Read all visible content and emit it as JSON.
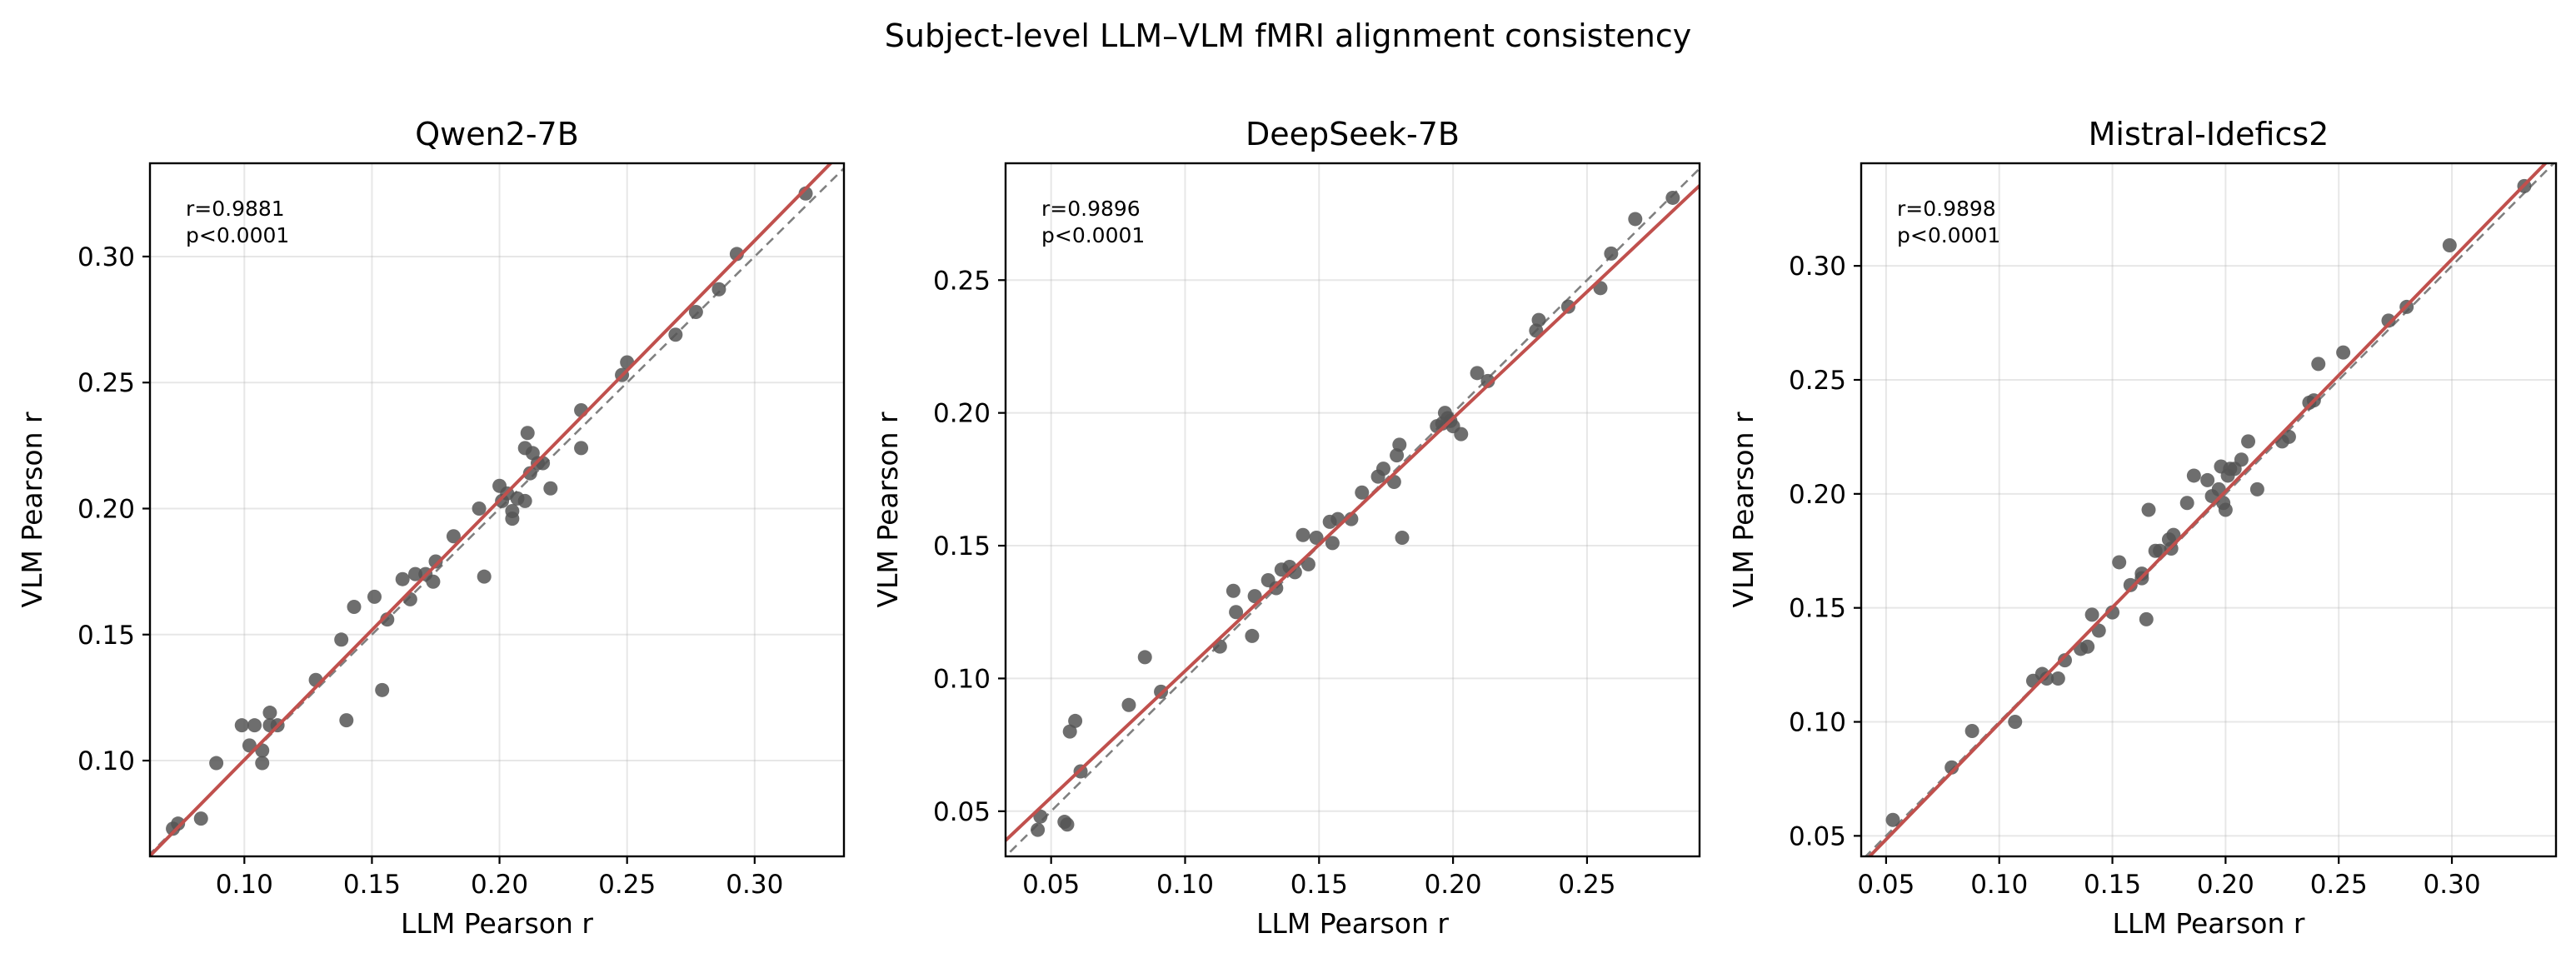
{
  "title": "Subject-level LLM–VLM fMRI alignment consistency",
  "colors": {
    "point": "#555555",
    "fit": "#c0504d",
    "identity": "#808080",
    "grid": "#b0b0b0"
  },
  "chart_data": [
    {
      "type": "scatter",
      "title": "Qwen2-7B",
      "xlabel": "LLM Pearson r",
      "ylabel": "VLM Pearson r",
      "stats": [
        "r=0.9881",
        "p<0.0001"
      ],
      "xlim": [
        0.063,
        0.335
      ],
      "ylim": [
        0.062,
        0.337
      ],
      "xticks": [
        0.1,
        0.15,
        0.2,
        0.25,
        0.3
      ],
      "yticks": [
        0.1,
        0.15,
        0.2,
        0.25,
        0.3
      ],
      "tick_labels_x": [
        "0.10",
        "0.15",
        "0.20",
        "0.25",
        "0.30"
      ],
      "tick_labels_y": [
        "0.10",
        "0.15",
        "0.20",
        "0.25",
        "0.30"
      ],
      "fit": {
        "slope": 1.03,
        "intercept": -0.0027
      },
      "identity_line": true,
      "grid": true,
      "points": [
        [
          0.072,
          0.073
        ],
        [
          0.074,
          0.075
        ],
        [
          0.083,
          0.077
        ],
        [
          0.089,
          0.099
        ],
        [
          0.099,
          0.114
        ],
        [
          0.102,
          0.106
        ],
        [
          0.104,
          0.114
        ],
        [
          0.107,
          0.104
        ],
        [
          0.107,
          0.099
        ],
        [
          0.11,
          0.119
        ],
        [
          0.11,
          0.114
        ],
        [
          0.113,
          0.114
        ],
        [
          0.128,
          0.132
        ],
        [
          0.138,
          0.148
        ],
        [
          0.14,
          0.116
        ],
        [
          0.143,
          0.161
        ],
        [
          0.151,
          0.165
        ],
        [
          0.154,
          0.128
        ],
        [
          0.156,
          0.156
        ],
        [
          0.162,
          0.172
        ],
        [
          0.165,
          0.164
        ],
        [
          0.167,
          0.174
        ],
        [
          0.171,
          0.174
        ],
        [
          0.174,
          0.171
        ],
        [
          0.175,
          0.179
        ],
        [
          0.182,
          0.189
        ],
        [
          0.192,
          0.2
        ],
        [
          0.194,
          0.173
        ],
        [
          0.2,
          0.209
        ],
        [
          0.201,
          0.203
        ],
        [
          0.203,
          0.206
        ],
        [
          0.205,
          0.199
        ],
        [
          0.205,
          0.196
        ],
        [
          0.207,
          0.204
        ],
        [
          0.21,
          0.203
        ],
        [
          0.21,
          0.224
        ],
        [
          0.211,
          0.23
        ],
        [
          0.212,
          0.214
        ],
        [
          0.213,
          0.222
        ],
        [
          0.215,
          0.218
        ],
        [
          0.217,
          0.218
        ],
        [
          0.22,
          0.208
        ],
        [
          0.232,
          0.224
        ],
        [
          0.232,
          0.239
        ],
        [
          0.248,
          0.253
        ],
        [
          0.25,
          0.258
        ],
        [
          0.269,
          0.269
        ],
        [
          0.277,
          0.278
        ],
        [
          0.286,
          0.287
        ],
        [
          0.293,
          0.301
        ],
        [
          0.32,
          0.325
        ]
      ]
    },
    {
      "type": "scatter",
      "title": "DeepSeek-7B",
      "xlabel": "LLM Pearson r",
      "ylabel": "VLM Pearson r",
      "stats": [
        "r=0.9896",
        "p<0.0001"
      ],
      "xlim": [
        0.033,
        0.292
      ],
      "ylim": [
        0.033,
        0.294
      ],
      "xticks": [
        0.05,
        0.1,
        0.15,
        0.2,
        0.25
      ],
      "yticks": [
        0.05,
        0.1,
        0.15,
        0.2,
        0.25
      ],
      "tick_labels_x": [
        "0.05",
        "0.10",
        "0.15",
        "0.20",
        "0.25"
      ],
      "tick_labels_y": [
        "0.05",
        "0.10",
        "0.15",
        "0.20",
        "0.25"
      ],
      "fit": {
        "slope": 0.952,
        "intercept": 0.0076
      },
      "identity_line": true,
      "grid": true,
      "points": [
        [
          0.045,
          0.043
        ],
        [
          0.046,
          0.048
        ],
        [
          0.055,
          0.046
        ],
        [
          0.056,
          0.045
        ],
        [
          0.057,
          0.08
        ],
        [
          0.059,
          0.084
        ],
        [
          0.061,
          0.065
        ],
        [
          0.079,
          0.09
        ],
        [
          0.085,
          0.108
        ],
        [
          0.091,
          0.095
        ],
        [
          0.113,
          0.112
        ],
        [
          0.118,
          0.133
        ],
        [
          0.119,
          0.125
        ],
        [
          0.125,
          0.116
        ],
        [
          0.126,
          0.131
        ],
        [
          0.131,
          0.137
        ],
        [
          0.134,
          0.134
        ],
        [
          0.136,
          0.141
        ],
        [
          0.139,
          0.142
        ],
        [
          0.141,
          0.14
        ],
        [
          0.144,
          0.154
        ],
        [
          0.146,
          0.143
        ],
        [
          0.149,
          0.153
        ],
        [
          0.154,
          0.159
        ],
        [
          0.155,
          0.151
        ],
        [
          0.157,
          0.16
        ],
        [
          0.162,
          0.16
        ],
        [
          0.166,
          0.17
        ],
        [
          0.172,
          0.176
        ],
        [
          0.174,
          0.179
        ],
        [
          0.178,
          0.174
        ],
        [
          0.179,
          0.184
        ],
        [
          0.18,
          0.188
        ],
        [
          0.181,
          0.153
        ],
        [
          0.194,
          0.195
        ],
        [
          0.196,
          0.196
        ],
        [
          0.197,
          0.2
        ],
        [
          0.198,
          0.198
        ],
        [
          0.199,
          0.197
        ],
        [
          0.2,
          0.195
        ],
        [
          0.203,
          0.192
        ],
        [
          0.209,
          0.215
        ],
        [
          0.213,
          0.212
        ],
        [
          0.231,
          0.231
        ],
        [
          0.232,
          0.235
        ],
        [
          0.243,
          0.24
        ],
        [
          0.255,
          0.247
        ],
        [
          0.259,
          0.26
        ],
        [
          0.268,
          0.273
        ],
        [
          0.282,
          0.281
        ]
      ]
    },
    {
      "type": "scatter",
      "title": "Mistral-Idefics2",
      "xlabel": "LLM Pearson r",
      "ylabel": "VLM Pearson r",
      "stats": [
        "r=0.9898",
        "p<0.0001"
      ],
      "xlim": [
        0.039,
        0.346
      ],
      "ylim": [
        0.041,
        0.345
      ],
      "xticks": [
        0.05,
        0.1,
        0.15,
        0.2,
        0.25,
        0.3
      ],
      "yticks": [
        0.05,
        0.1,
        0.15,
        0.2,
        0.25,
        0.3
      ],
      "tick_labels_x": [
        "0.05",
        "0.10",
        "0.15",
        "0.20",
        "0.25",
        "0.30"
      ],
      "tick_labels_y": [
        "0.05",
        "0.10",
        "0.15",
        "0.20",
        "0.25",
        "0.30"
      ],
      "fit": {
        "slope": 1.018,
        "intercept": -0.0025
      },
      "identity_line": true,
      "grid": true,
      "points": [
        [
          0.053,
          0.057
        ],
        [
          0.079,
          0.08
        ],
        [
          0.088,
          0.096
        ],
        [
          0.107,
          0.1
        ],
        [
          0.115,
          0.118
        ],
        [
          0.119,
          0.121
        ],
        [
          0.121,
          0.119
        ],
        [
          0.126,
          0.119
        ],
        [
          0.129,
          0.127
        ],
        [
          0.136,
          0.132
        ],
        [
          0.139,
          0.133
        ],
        [
          0.141,
          0.147
        ],
        [
          0.144,
          0.14
        ],
        [
          0.15,
          0.148
        ],
        [
          0.153,
          0.17
        ],
        [
          0.158,
          0.16
        ],
        [
          0.163,
          0.163
        ],
        [
          0.163,
          0.165
        ],
        [
          0.165,
          0.145
        ],
        [
          0.166,
          0.193
        ],
        [
          0.169,
          0.175
        ],
        [
          0.171,
          0.175
        ],
        [
          0.175,
          0.18
        ],
        [
          0.176,
          0.176
        ],
        [
          0.177,
          0.182
        ],
        [
          0.183,
          0.196
        ],
        [
          0.186,
          0.208
        ],
        [
          0.192,
          0.206
        ],
        [
          0.194,
          0.199
        ],
        [
          0.197,
          0.202
        ],
        [
          0.198,
          0.212
        ],
        [
          0.199,
          0.196
        ],
        [
          0.2,
          0.193
        ],
        [
          0.201,
          0.208
        ],
        [
          0.202,
          0.211
        ],
        [
          0.204,
          0.211
        ],
        [
          0.207,
          0.215
        ],
        [
          0.21,
          0.223
        ],
        [
          0.214,
          0.202
        ],
        [
          0.225,
          0.223
        ],
        [
          0.228,
          0.225
        ],
        [
          0.237,
          0.24
        ],
        [
          0.239,
          0.241
        ],
        [
          0.241,
          0.257
        ],
        [
          0.252,
          0.262
        ],
        [
          0.272,
          0.276
        ],
        [
          0.28,
          0.282
        ],
        [
          0.299,
          0.309
        ],
        [
          0.332,
          0.335
        ]
      ]
    }
  ]
}
